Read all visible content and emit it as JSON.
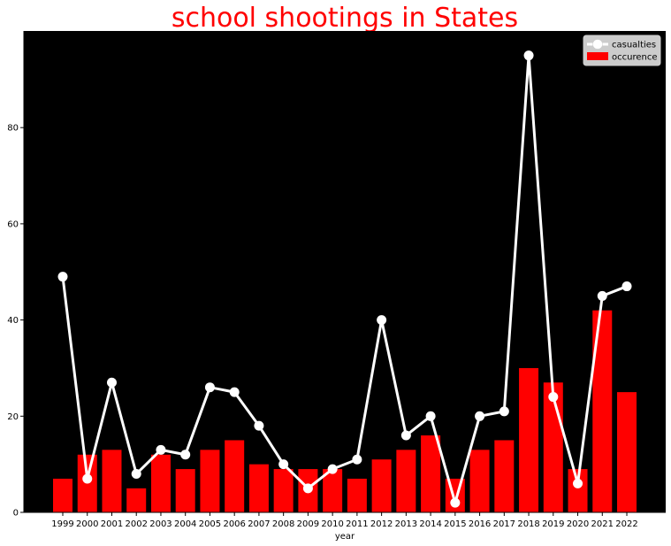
{
  "chart_data": {
    "type": "bar",
    "title": "school shootings in States",
    "xlabel": "year",
    "ylabel": "",
    "ylim": [
      0,
      100
    ],
    "yticks": [
      0,
      20,
      40,
      60,
      80
    ],
    "categories": [
      "1999",
      "2000",
      "2001",
      "2002",
      "2003",
      "2004",
      "2005",
      "2006",
      "2007",
      "2008",
      "2009",
      "2010",
      "2011",
      "2012",
      "2013",
      "2014",
      "2015",
      "2016",
      "2017",
      "2018",
      "2019",
      "2020",
      "2021",
      "2022"
    ],
    "series": [
      {
        "name": "occurence",
        "type": "bar",
        "color": "#ff0000",
        "values": [
          7,
          12,
          13,
          5,
          12,
          9,
          13,
          15,
          10,
          9,
          9,
          9,
          7,
          11,
          13,
          16,
          7,
          13,
          15,
          30,
          27,
          9,
          42,
          25
        ]
      },
      {
        "name": "casualties",
        "type": "line",
        "color": "#ffffff",
        "values": [
          49,
          7,
          27,
          8,
          13,
          12,
          26,
          25,
          18,
          10,
          5,
          9,
          11,
          40,
          16,
          20,
          2,
          20,
          21,
          95,
          24,
          6,
          45,
          47
        ]
      }
    ],
    "legend_position": "top-right",
    "plot_background": "#000000",
    "grid": false
  }
}
